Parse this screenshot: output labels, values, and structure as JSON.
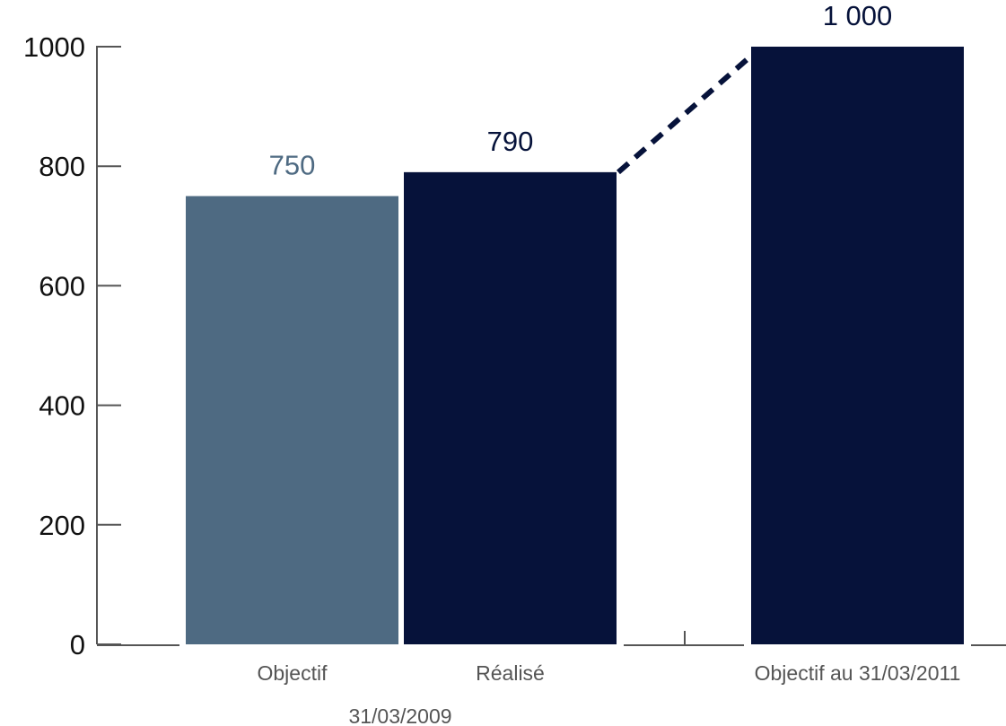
{
  "chart_data": {
    "type": "bar",
    "title": "",
    "xlabel": "",
    "ylabel": "",
    "ylim": [
      0,
      1000
    ],
    "yticks": [
      "0",
      "200",
      "400",
      "600",
      "800",
      "1000"
    ],
    "grid": false,
    "categories": [
      "Objectif",
      "Réalisé",
      "Objectif au 31/03/2011"
    ],
    "values": [
      750,
      790,
      1000
    ],
    "value_labels": [
      "750",
      "790",
      "1 000"
    ],
    "bar_colors": [
      "#4e6a82",
      "#06123a",
      "#06123a"
    ],
    "label_colors": [
      "#4e6a82",
      "#06123a",
      "#06123a"
    ],
    "group_label": "31/03/2009",
    "connector": {
      "from_category": "Réalisé",
      "to_category": "Objectif au 31/03/2011",
      "style": "dashed"
    }
  }
}
